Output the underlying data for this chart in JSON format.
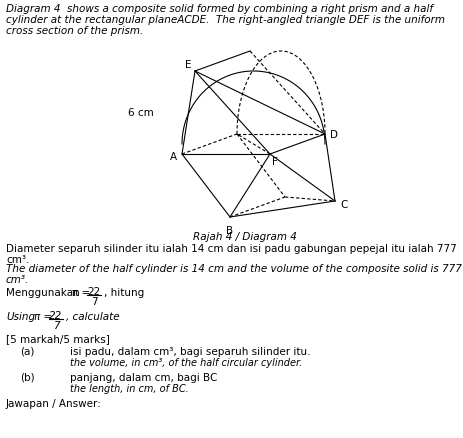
{
  "title_line1": "Diagram 4  shows a composite solid formed by combining a right prism and a half",
  "title_line2": "cylinder at the rectangular planeACDE.  The right-angled triangle DEF is the uniform",
  "title_line3": "cross section of the prism.",
  "caption": "Rajah 4 / Diagram 4",
  "label_6cm": "6 cm",
  "label_E": "E",
  "label_D": "D",
  "label_A": "A",
  "label_F": "F",
  "label_B": "B",
  "label_C": "C",
  "text1_ms": "Diameter separuh silinder itu ialah 14 cm dan isi padu gabungan pepejal itu ialah 777",
  "text1_cm3": "cm³.",
  "text1_en": "The diameter of the half cylinder is 14 cm and the volume of the composite solid is 777",
  "text1_en_cm3": "cm³.",
  "menggunakan": "Menggunakan",
  "pi_sym": "π =",
  "hitung": ", hitung",
  "using_text": "Using",
  "calculate": ", calculate",
  "marks": "[5 markah/5 marks]",
  "a_label": "(a)",
  "a_ms": "isi padu, dalam cm³, bagi separuh silinder itu.",
  "a_en": "the volume, in cm³, of the half circular cylinder.",
  "b_label": "(b)",
  "b_ms": "panjang, dalam cm, bagi BC",
  "b_en": "the length, in cm, of BC.",
  "jawapan": "Jawapan / Answer:",
  "bg_color": "#ffffff",
  "text_color": "#000000",
  "diagram_color": "#000000",
  "fs_title": 7.5,
  "fs_body": 7.5,
  "fs_label": 7.5,
  "fs_caption": 7.5
}
